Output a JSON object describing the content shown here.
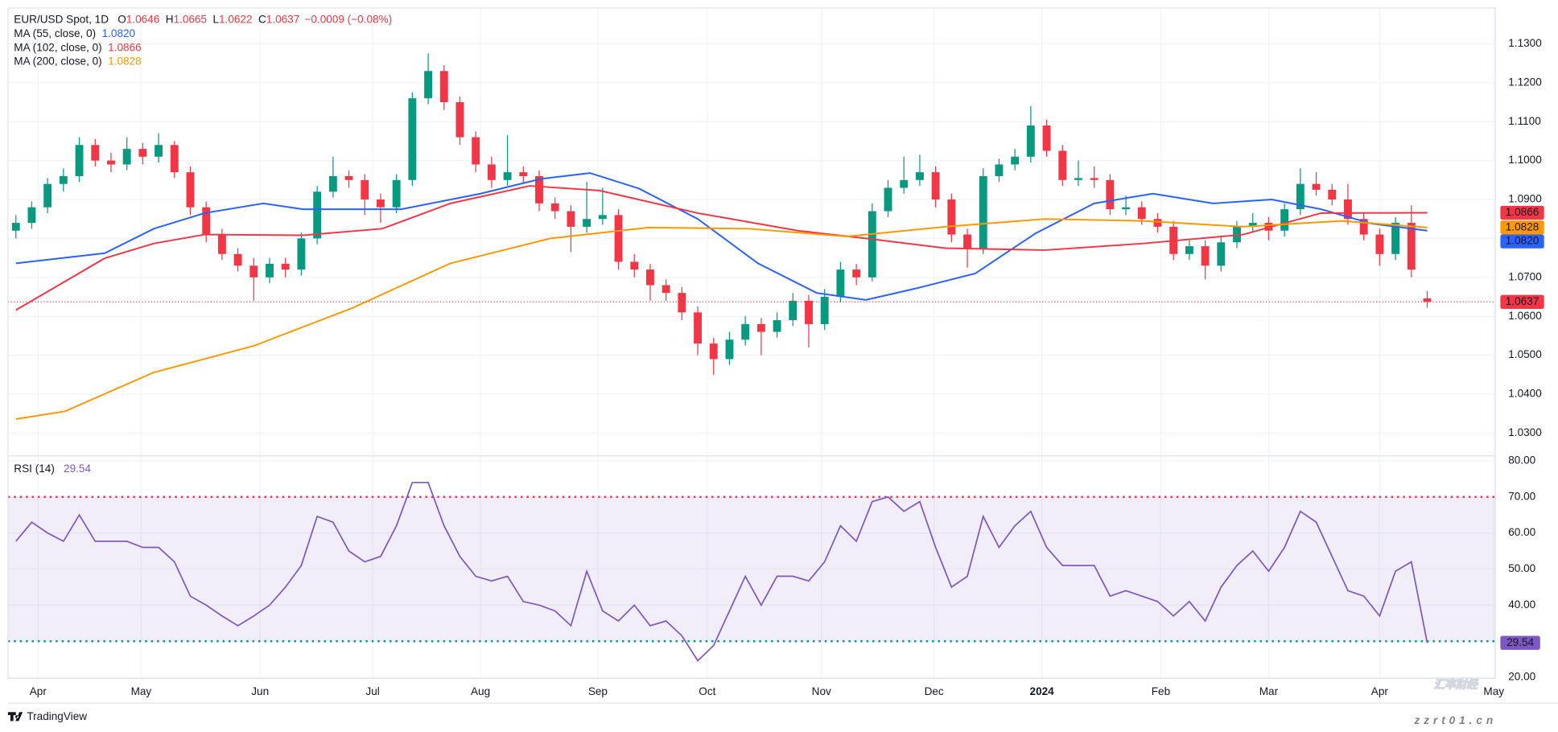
{
  "chart_data": {
    "type": "candlestick",
    "title": "EUR/USD Spot, 1D",
    "header": [
      {
        "label": "O",
        "value": 1.0646
      },
      {
        "label": "H",
        "value": 1.0665
      },
      {
        "label": "L",
        "value": 1.0622
      },
      {
        "label": "C",
        "value": 1.0637
      }
    ],
    "change": "−0.0009 (−0.08%)",
    "candle_colors": {
      "up": "#089981",
      "down": "#f23645"
    },
    "candles": [
      [
        1.082,
        1.086,
        1.08,
        1.084
      ],
      [
        1.084,
        1.0895,
        1.0825,
        1.088
      ],
      [
        1.088,
        1.0955,
        1.0865,
        1.094
      ],
      [
        1.094,
        1.098,
        1.092,
        1.096
      ],
      [
        1.096,
        1.106,
        1.0945,
        1.104
      ],
      [
        1.104,
        1.1055,
        1.0985,
        1.1
      ],
      [
        1.1,
        1.102,
        1.097,
        1.099
      ],
      [
        1.099,
        1.106,
        1.0975,
        1.103
      ],
      [
        1.103,
        1.1045,
        1.099,
        1.101
      ],
      [
        1.101,
        1.107,
        1.0995,
        1.104
      ],
      [
        1.104,
        1.105,
        1.0955,
        1.097
      ],
      [
        1.097,
        1.0985,
        1.086,
        1.088
      ],
      [
        1.088,
        1.0895,
        1.079,
        1.081
      ],
      [
        1.081,
        1.0825,
        1.0745,
        1.076
      ],
      [
        1.076,
        1.0775,
        1.0715,
        1.073
      ],
      [
        1.073,
        1.075,
        1.064,
        1.07
      ],
      [
        1.07,
        1.075,
        1.0685,
        1.0735
      ],
      [
        1.0735,
        1.075,
        1.07,
        1.072
      ],
      [
        1.072,
        1.0815,
        1.0705,
        1.08
      ],
      [
        1.08,
        1.0935,
        1.0785,
        1.092
      ],
      [
        1.092,
        1.101,
        1.0905,
        1.096
      ],
      [
        1.096,
        1.0975,
        1.093,
        1.095
      ],
      [
        1.095,
        1.0965,
        1.086,
        1.09
      ],
      [
        1.09,
        1.0915,
        1.084,
        1.088
      ],
      [
        1.088,
        1.0965,
        1.0865,
        1.095
      ],
      [
        1.095,
        1.1175,
        1.0935,
        1.116
      ],
      [
        1.116,
        1.1275,
        1.1145,
        1.123
      ],
      [
        1.123,
        1.1245,
        1.113,
        1.115
      ],
      [
        1.115,
        1.1165,
        1.104,
        1.106
      ],
      [
        1.106,
        1.1075,
        1.097,
        1.099
      ],
      [
        1.099,
        1.101,
        1.093,
        1.095
      ],
      [
        1.095,
        1.1065,
        1.0935,
        1.097
      ],
      [
        1.097,
        1.0985,
        1.094,
        1.096
      ],
      [
        1.096,
        1.0975,
        1.087,
        1.089
      ],
      [
        1.089,
        1.0905,
        1.085,
        1.087
      ],
      [
        1.087,
        1.0885,
        1.0765,
        1.083
      ],
      [
        1.083,
        1.0945,
        1.0815,
        1.085
      ],
      [
        1.085,
        1.093,
        1.0835,
        1.086
      ],
      [
        1.086,
        1.0875,
        1.072,
        1.074
      ],
      [
        1.074,
        1.076,
        1.07,
        1.072
      ],
      [
        1.072,
        1.0735,
        1.064,
        1.068
      ],
      [
        1.068,
        1.0695,
        1.064,
        1.066
      ],
      [
        1.066,
        1.0675,
        1.059,
        1.061
      ],
      [
        1.061,
        1.0625,
        1.05,
        1.053
      ],
      [
        1.053,
        1.0545,
        1.045,
        1.049
      ],
      [
        1.049,
        1.056,
        1.0475,
        1.054
      ],
      [
        1.054,
        1.06,
        1.0525,
        1.058
      ],
      [
        1.058,
        1.0595,
        1.05,
        1.056
      ],
      [
        1.056,
        1.061,
        1.0545,
        1.059
      ],
      [
        1.059,
        1.066,
        1.0575,
        1.064
      ],
      [
        1.064,
        1.0655,
        1.052,
        1.058
      ],
      [
        1.058,
        1.067,
        1.0565,
        1.065
      ],
      [
        1.065,
        1.074,
        1.0635,
        1.072
      ],
      [
        1.072,
        1.0735,
        1.068,
        1.07
      ],
      [
        1.07,
        1.089,
        1.069,
        1.087
      ],
      [
        1.087,
        1.095,
        1.0855,
        1.093
      ],
      [
        1.093,
        1.101,
        1.0915,
        1.095
      ],
      [
        1.095,
        1.1015,
        1.0935,
        1.097
      ],
      [
        1.097,
        1.0985,
        1.088,
        1.09
      ],
      [
        1.09,
        1.0915,
        1.079,
        1.081
      ],
      [
        1.081,
        1.0825,
        1.0725,
        1.0775
      ],
      [
        1.0775,
        1.098,
        1.076,
        1.096
      ],
      [
        1.096,
        1.1005,
        1.0945,
        1.099
      ],
      [
        1.099,
        1.103,
        1.0975,
        1.101
      ],
      [
        1.101,
        1.114,
        1.0995,
        1.109
      ],
      [
        1.109,
        1.1105,
        1.101,
        1.1025
      ],
      [
        1.1025,
        1.104,
        1.0935,
        1.095
      ],
      [
        1.095,
        1.1,
        1.0935,
        1.0955
      ],
      [
        1.0955,
        1.0985,
        1.093,
        1.095
      ],
      [
        1.095,
        1.0965,
        1.086,
        1.0875
      ],
      [
        1.0875,
        1.091,
        1.086,
        1.088
      ],
      [
        1.088,
        1.0895,
        1.0835,
        1.085
      ],
      [
        1.085,
        1.0865,
        1.0815,
        1.083
      ],
      [
        1.083,
        1.0845,
        1.0745,
        1.076
      ],
      [
        1.076,
        1.0795,
        1.0745,
        1.078
      ],
      [
        1.078,
        1.0795,
        1.0695,
        1.073
      ],
      [
        1.073,
        1.0805,
        1.0715,
        1.079
      ],
      [
        1.079,
        1.0845,
        1.0775,
        1.083
      ],
      [
        1.083,
        1.0865,
        1.0815,
        1.084
      ],
      [
        1.084,
        1.0855,
        1.0795,
        1.082
      ],
      [
        1.082,
        1.089,
        1.0805,
        1.0875
      ],
      [
        1.0875,
        1.098,
        1.086,
        1.094
      ],
      [
        1.094,
        1.097,
        1.091,
        1.0925
      ],
      [
        1.0925,
        1.094,
        1.0885,
        1.09
      ],
      [
        1.09,
        1.094,
        1.0835,
        1.085
      ],
      [
        1.085,
        1.0865,
        1.0795,
        1.081
      ],
      [
        1.081,
        1.0825,
        1.073,
        1.076
      ],
      [
        1.076,
        1.0855,
        1.0745,
        1.084
      ],
      [
        1.084,
        1.0885,
        1.07,
        1.072
      ],
      [
        1.0646,
        1.0665,
        1.0622,
        1.0637
      ]
    ],
    "xlim": [
      -0.5,
      93.3
    ],
    "xticks": [
      {
        "value": 1.4,
        "label": "Apr"
      },
      {
        "value": 7.9,
        "label": "May"
      },
      {
        "value": 15.4,
        "label": "Jun"
      },
      {
        "value": 22.5,
        "label": "Jul"
      },
      {
        "value": 29.3,
        "label": "Aug"
      },
      {
        "value": 36.7,
        "label": "Sep"
      },
      {
        "value": 43.6,
        "label": "Oct"
      },
      {
        "value": 50.8,
        "label": "Nov"
      },
      {
        "value": 57.9,
        "label": "Dec"
      },
      {
        "value": 64.7,
        "label": "2024",
        "bold": true
      },
      {
        "value": 72.2,
        "label": "Feb"
      },
      {
        "value": 79,
        "label": "Mar"
      },
      {
        "value": 86,
        "label": "Apr"
      },
      {
        "value": 93.2,
        "label": "May"
      }
    ],
    "ylim": [
      1.0244,
      1.1392
    ],
    "yticks": [
      {
        "value": 1.03,
        "label": "1.0300"
      },
      {
        "value": 1.04,
        "label": "1.0400"
      },
      {
        "value": 1.05,
        "label": "1.0500"
      },
      {
        "value": 1.06,
        "label": "1.0600"
      },
      {
        "value": 1.07,
        "label": "1.0700"
      },
      {
        "value": 1.08,
        "label": "1.0800"
      },
      {
        "value": 1.09,
        "label": "1.0900"
      },
      {
        "value": 1.1,
        "label": "1.1000"
      },
      {
        "value": 1.11,
        "label": "1.1100"
      },
      {
        "value": 1.12,
        "label": "1.1200"
      },
      {
        "value": 1.13,
        "label": "1.1300"
      }
    ],
    "grid": true,
    "last_price": 1.0637,
    "last_price_color": "#f23645",
    "moving_averages": [
      {
        "name": "MA (55, close, 0)",
        "color": "#2962ff",
        "last": {
          "value": 1.082,
          "label": "1.0820"
        },
        "x": [
          0,
          5.6,
          8.7,
          11.9,
          15.6,
          18.1,
          24.3,
          29.3,
          33.1,
          36.2,
          39.3,
          43,
          46.8,
          50.5,
          53.6,
          56.8,
          60.5,
          64.3,
          68,
          71.7,
          75.5,
          79.2,
          82.3,
          85.5,
          89
        ],
        "values": [
          1.0736,
          1.0762,
          1.0825,
          1.0865,
          1.089,
          1.0875,
          1.0875,
          1.0915,
          1.0953,
          1.0968,
          1.0928,
          1.085,
          1.0736,
          1.066,
          1.0642,
          1.0672,
          1.071,
          1.0813,
          1.089,
          1.0915,
          1.089,
          1.09,
          1.0875,
          1.0838,
          1.082
        ]
      },
      {
        "name": "MA (102, close, 0)",
        "color": "#f23645",
        "last": 1.0866,
        "x": [
          0,
          5.6,
          8.7,
          11.9,
          18.1,
          23.1,
          27.4,
          32.4,
          36.8,
          43,
          49.3,
          53.6,
          58.6,
          64.9,
          71.1,
          77.4,
          82.3,
          89
        ],
        "values": [
          1.0616,
          1.0749,
          1.0787,
          1.081,
          1.0808,
          1.0825,
          1.089,
          1.0935,
          1.0923,
          1.0865,
          1.082,
          1.08,
          1.0775,
          1.077,
          1.0787,
          1.081,
          1.0865,
          1.0866
        ]
      },
      {
        "name": "MA (200, close, 0)",
        "color": "#ff9800",
        "last": 1.0828,
        "x": [
          0,
          3.1,
          8.7,
          15,
          21.2,
          27.4,
          33.7,
          39.9,
          46.2,
          52.4,
          58.6,
          64.9,
          71.1,
          77.4,
          83.6,
          89
        ],
        "values": [
          1.0336,
          1.0356,
          1.0456,
          1.0524,
          1.0621,
          1.0736,
          1.08,
          1.0828,
          1.0825,
          1.0805,
          1.083,
          1.085,
          1.0845,
          1.083,
          1.0845,
          1.0828
        ]
      }
    ],
    "rsi": {
      "type": "line",
      "name": "RSI (14)",
      "last": 29.54,
      "color": "#7e57c2",
      "values": [
        57.7,
        63,
        60,
        57.7,
        65,
        57.7,
        57.7,
        57.7,
        56,
        56,
        52,
        42.5,
        40,
        37,
        34.3,
        37,
        40,
        45,
        51,
        64.6,
        63,
        55,
        52,
        53.5,
        62,
        74,
        74,
        62,
        53.5,
        48,
        46.7,
        48,
        41,
        40,
        38.4,
        34.3,
        49.4,
        38.4,
        35.6,
        40,
        34.3,
        35.6,
        31.5,
        24.6,
        28.8,
        38.4,
        48,
        40,
        48,
        48,
        46.7,
        52,
        62,
        57.7,
        68.7,
        70,
        66,
        68.7,
        56,
        45,
        48,
        64.6,
        56,
        62,
        66,
        56,
        51,
        51,
        51,
        42.5,
        44,
        42.5,
        41,
        37,
        41,
        35.6,
        45,
        51,
        55,
        49.4,
        56,
        66,
        63,
        53.5,
        44,
        42.5,
        37,
        49.4,
        52,
        29.54
      ],
      "ylim": [
        19.7,
        81.1
      ],
      "yticks": [
        {
          "value": 20,
          "label": "20.00"
        },
        {
          "value": 30,
          "label": "30.00"
        },
        {
          "value": 40,
          "label": "40.00"
        },
        {
          "value": 50,
          "label": "50.00"
        },
        {
          "value": 60,
          "label": "60.00"
        },
        {
          "value": 70,
          "label": "70.00"
        },
        {
          "value": 80,
          "label": "80.00"
        }
      ],
      "bands": {
        "upper": 70,
        "lower": 30,
        "upper_color": "#f23645",
        "lower_color": "#089981",
        "fill": "#7e57c2"
      }
    },
    "brand": "TradingView",
    "watermark": [
      "汇率财经",
      "zzrt01.cn"
    ]
  }
}
